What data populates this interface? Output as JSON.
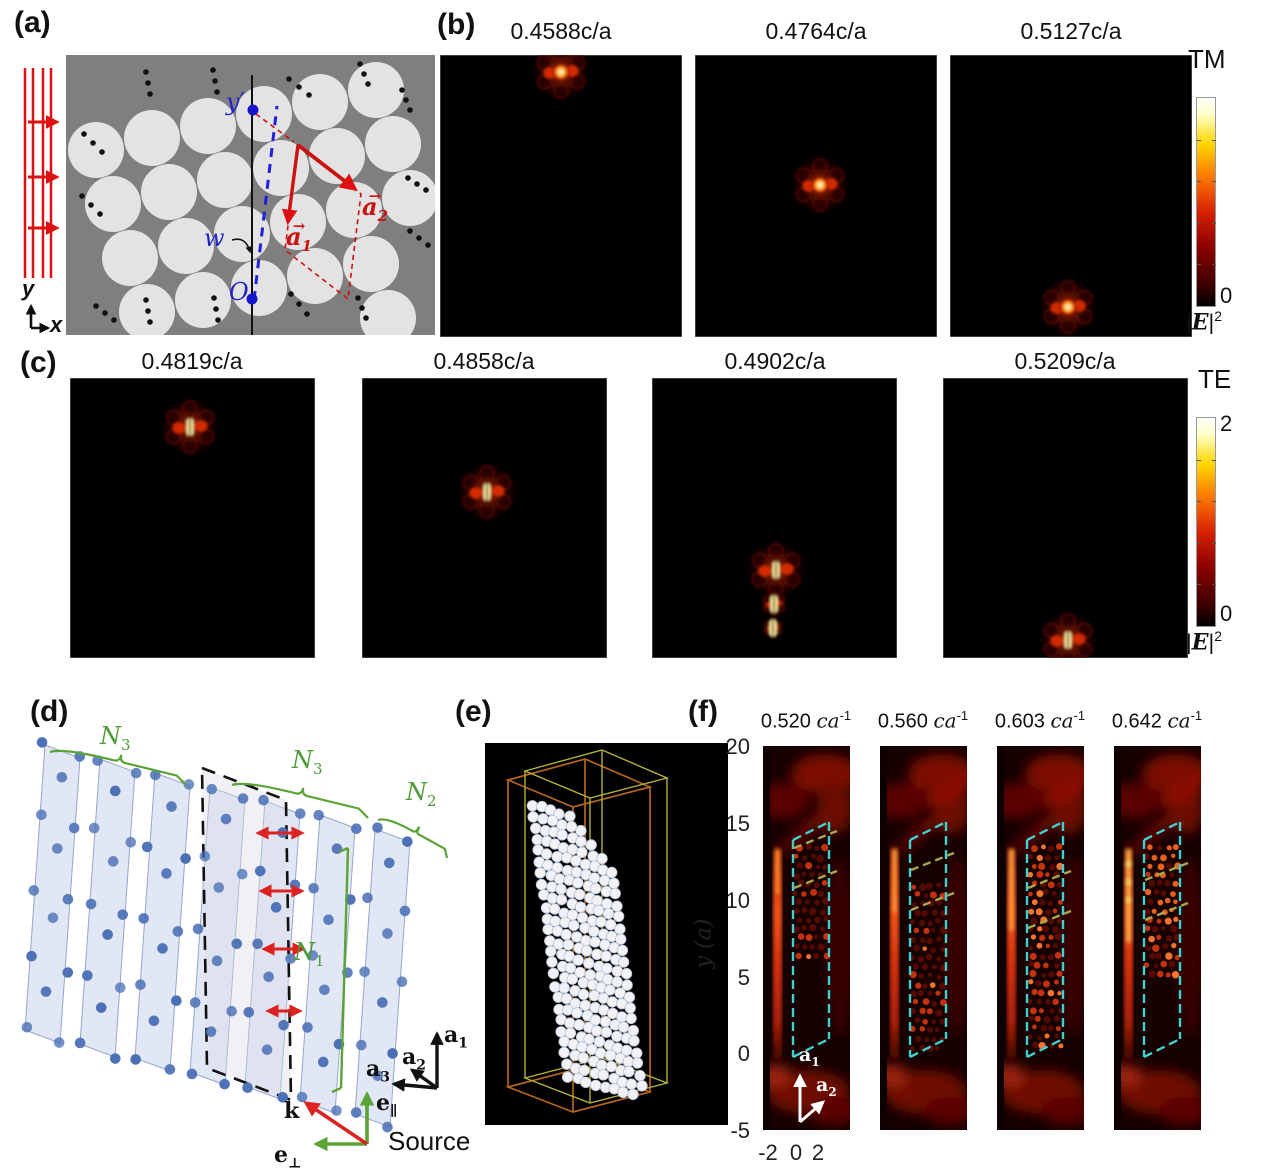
{
  "panels": {
    "a": {
      "tag": "(a)",
      "y_axis": "y",
      "x_axis": "x",
      "y_prime": "y′",
      "origin": "O",
      "width_label": "w",
      "a1": {
        "base": "a",
        "sub": "1",
        "arrow": "→"
      },
      "a2": {
        "base": "a",
        "sub": "2",
        "arrow": "→"
      }
    },
    "b": {
      "tag": "(b)",
      "mode": "TM",
      "titles": [
        "0.4588c/a",
        "0.4764c/a",
        "0.5127c/a"
      ],
      "colorbar": {
        "min": "0",
        "unit_pre": "|",
        "unit_sym": "E",
        "unit_post": "|",
        "unit_sup": "2"
      }
    },
    "c": {
      "tag": "(c)",
      "mode": "TE",
      "titles": [
        "0.4819c/a",
        "0.4858c/a",
        "0.4902c/a",
        "0.5209c/a"
      ],
      "colorbar": {
        "max": "2",
        "min": "0",
        "unit_pre": "|",
        "unit_sym": "E",
        "unit_post": "|",
        "unit_sup": "2"
      }
    },
    "d": {
      "tag": "(d)",
      "n1": {
        "base": "N",
        "sub": "1"
      },
      "n2": {
        "base": "N",
        "sub": "2"
      },
      "n3": {
        "base": "N",
        "sub": "3"
      },
      "a1": {
        "base": "a",
        "sub": "1"
      },
      "a2": {
        "base": "a",
        "sub": "2"
      },
      "a3": {
        "base": "a",
        "sub": "3"
      },
      "k": "k",
      "e_par": {
        "base": "e",
        "sub": "∥"
      },
      "e_perp": {
        "base": "e",
        "sub": "⊥"
      },
      "source": "Source"
    },
    "e": {
      "tag": "(e)"
    },
    "f": {
      "tag": "(f)",
      "titles": [
        {
          "num": "0.520",
          "unit": "ca",
          "sup": "-1"
        },
        {
          "num": "0.560",
          "unit": "ca",
          "sup": "-1"
        },
        {
          "num": "0.603",
          "unit": "ca",
          "sup": "-1"
        },
        {
          "num": "0.642",
          "unit": "ca",
          "sup": "-1"
        }
      ],
      "ylabel": "y (a)",
      "yticks": [
        "20",
        "15",
        "10",
        "5",
        "0",
        "-5"
      ],
      "xticks": [
        "-2",
        "0",
        "2"
      ],
      "a1": {
        "base": "a",
        "sub": "1"
      },
      "a2": {
        "base": "a",
        "sub": "2"
      }
    }
  },
  "colors": {
    "incident_red": "#dd1111",
    "lattice_blue": "#2222cc",
    "bracket_green": "#4e9a34",
    "box_cyan": "#3fd0d0",
    "box_olive": "#a8a850",
    "crystal_gray": "#7f7f7f",
    "rod_light": "#e3e3e3"
  }
}
